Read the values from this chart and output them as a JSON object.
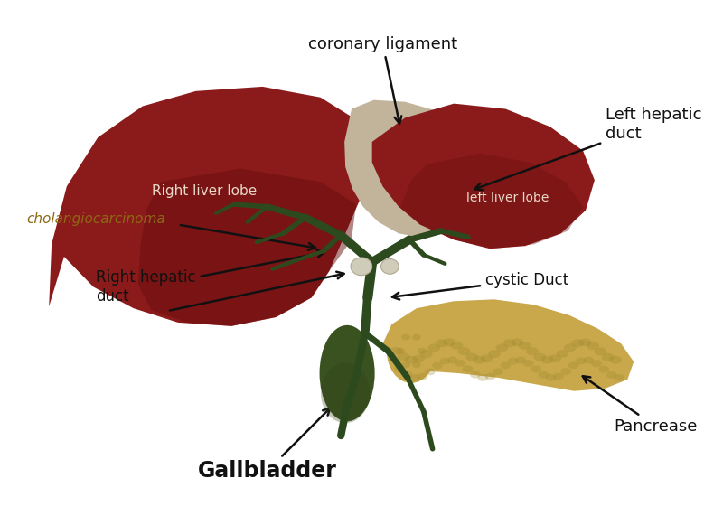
{
  "bg_color": "#ffffff",
  "liver_color": "#8B1A1A",
  "liver_shadow": "#6B1010",
  "caudate_color": "#C2B49A",
  "left_lobe_color": "#8B1A1A",
  "left_lobe_shadow": "#6B1010",
  "gallbladder_color": "#3A5220",
  "bile_duct_color": "#2D4A1E",
  "pancreas_color": "#C8A84B",
  "pancreas_texture": "#A08830",
  "duct_node_color": "#D0CCBA",
  "labels": {
    "coronary_ligament": "coronary ligament",
    "left_hepatic_duct": "Left hepatic\nduct",
    "cholangiocarcinoma": "cholangiocarcinoma",
    "right_liver_lobe": "Right liver lobe",
    "left_liver_lobe": "left liver lobe",
    "right_hepatic_duct": "Right hepatic\nduct",
    "cystic_duct": "cystic Duct",
    "gallbladder": "Gallbladder",
    "pancrease": "Pancrease"
  },
  "label_colors": {
    "coronary_ligament": "#111111",
    "left_hepatic_duct": "#111111",
    "cholangiocarcinoma": "#8B6914",
    "right_liver_lobe": "#e8d8c8",
    "left_liver_lobe": "#e8d8c8",
    "right_hepatic_duct": "#111111",
    "cystic_duct": "#111111",
    "gallbladder": "#111111",
    "pancrease": "#111111"
  },
  "figsize": [
    8.0,
    5.71
  ],
  "dpi": 100
}
